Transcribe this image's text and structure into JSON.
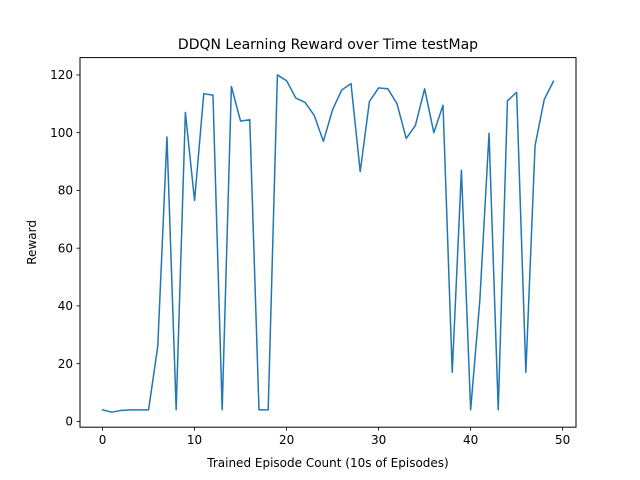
{
  "chart_data": {
    "type": "line",
    "title": "DDQN Learning Reward over Time testMap",
    "xlabel": "Trained Episode Count (10s of Episodes)",
    "ylabel": "Reward",
    "xlim": [
      -2.45,
      51.45
    ],
    "ylim": [
      -2.0,
      126.0
    ],
    "xticks": [
      0,
      10,
      20,
      30,
      40,
      50
    ],
    "yticks": [
      0,
      20,
      40,
      60,
      80,
      100,
      120
    ],
    "grid": false,
    "line_color": "#1f77b4",
    "series": [
      {
        "x": [
          0,
          1,
          2,
          3,
          4,
          5,
          6,
          7,
          8,
          9,
          10,
          11,
          12,
          13,
          14,
          15,
          16,
          17,
          18,
          19,
          20,
          21,
          22,
          23,
          24,
          25,
          26,
          27,
          28,
          29,
          30,
          31,
          32,
          33,
          34,
          35,
          36,
          37,
          38,
          39,
          40,
          41,
          42,
          43,
          44,
          45,
          46,
          47,
          48,
          49
        ],
        "values": [
          4,
          3.2,
          3.8,
          4,
          4,
          4,
          26,
          98.5,
          4,
          107,
          76.5,
          113.5,
          113,
          4,
          116,
          104,
          104.5,
          4,
          4,
          120,
          118,
          112,
          110.5,
          106,
          97,
          108,
          114.8,
          117,
          86.5,
          110.8,
          115.5,
          115.2,
          110,
          98,
          102.5,
          115.2,
          100,
          109.5,
          17,
          87,
          4,
          42,
          99.8,
          4,
          111,
          114,
          17,
          95.5,
          111.5,
          117.8
        ]
      }
    ]
  }
}
